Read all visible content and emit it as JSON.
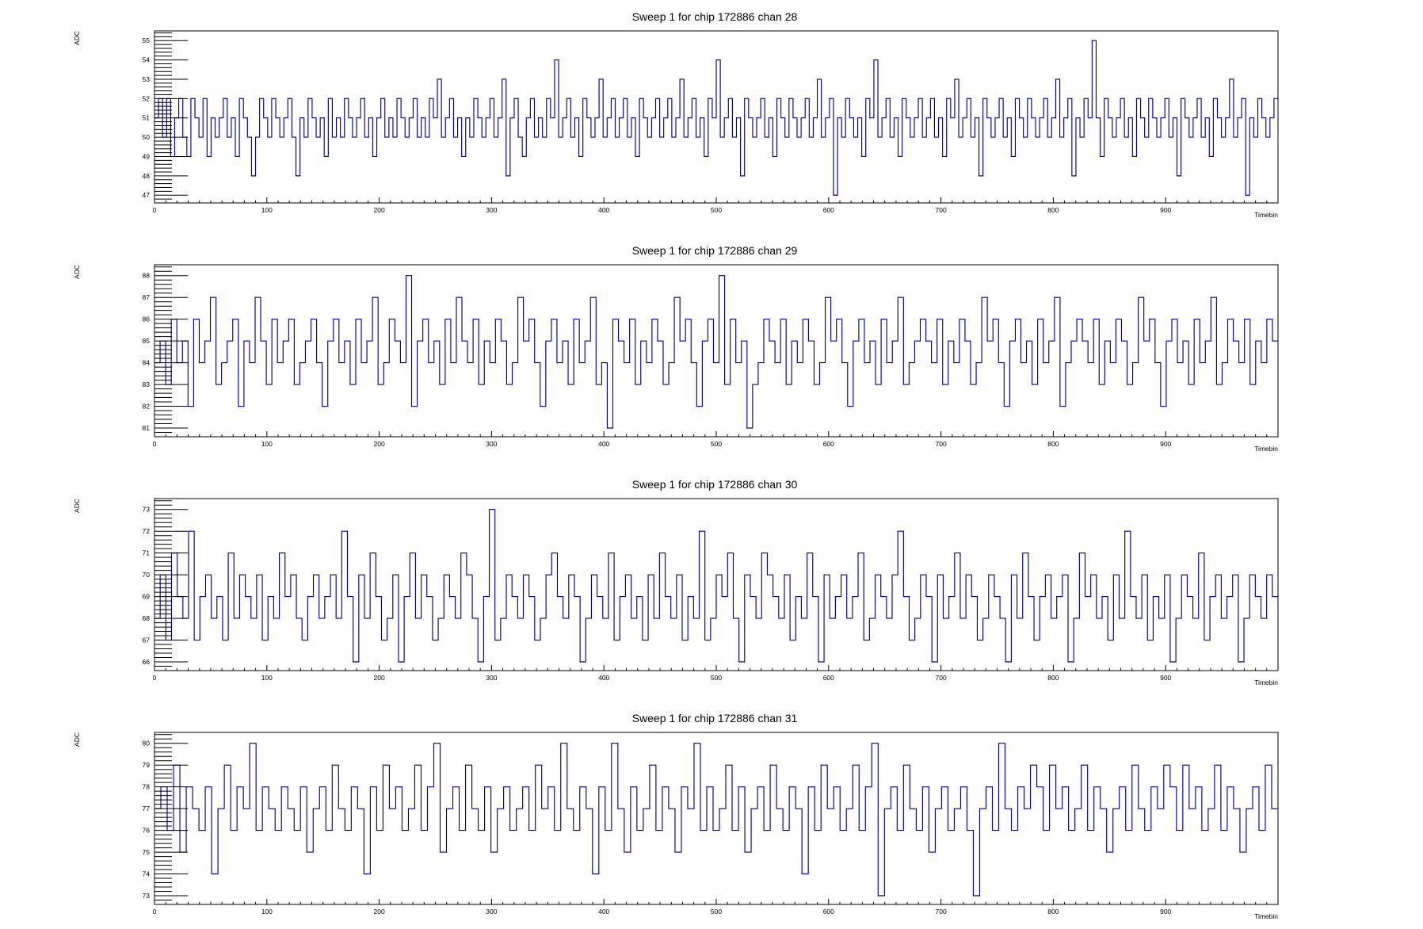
{
  "chart_data": [
    {
      "type": "line",
      "title": "Sweep 1 for chip 172886 chan 28",
      "xlabel": "Timebin",
      "ylabel": "ADC",
      "xlim": [
        0,
        1000
      ],
      "ylim": [
        46.6,
        55.5
      ],
      "xticks": [
        0,
        100,
        200,
        300,
        400,
        500,
        600,
        700,
        800,
        900
      ],
      "yticks": [
        47,
        48,
        49,
        50,
        51,
        52,
        53,
        54,
        55
      ],
      "grid": false,
      "legend": "none",
      "step": true,
      "series": [
        {
          "values": [
            51,
            52,
            50,
            52,
            49,
            51,
            52,
            50,
            49,
            52,
            51,
            50,
            52,
            49,
            51,
            50,
            51,
            52,
            50,
            51,
            49,
            52,
            51,
            50,
            48,
            50,
            52,
            51,
            50,
            52,
            51,
            50,
            51,
            52,
            50,
            48,
            51,
            50,
            52,
            51,
            50,
            51,
            49,
            52,
            50,
            51,
            50,
            52,
            51,
            50,
            51,
            52,
            50,
            51,
            49,
            51,
            52,
            50,
            51,
            50,
            52,
            51,
            50,
            51,
            52,
            50,
            51,
            50,
            52,
            51,
            53,
            50,
            51,
            52,
            50,
            51,
            49,
            51,
            50,
            52,
            51,
            50,
            51,
            52,
            50,
            51,
            53,
            48,
            51,
            52,
            50,
            49,
            51,
            52,
            50,
            51,
            50,
            52,
            51,
            54,
            50,
            51,
            52,
            50,
            51,
            49,
            52,
            51,
            50,
            51,
            53,
            50,
            51,
            52,
            50,
            51,
            52,
            50,
            51,
            49,
            52,
            51,
            50,
            51,
            52,
            50,
            51,
            52,
            50,
            51,
            53,
            50,
            51,
            52,
            50,
            51,
            49,
            52,
            51,
            54,
            50,
            51,
            52,
            50,
            51,
            48,
            52,
            51,
            50,
            51,
            52,
            50,
            51,
            49,
            52,
            51,
            50,
            52,
            51,
            50,
            51,
            52,
            50,
            51,
            53,
            50,
            51,
            52,
            47,
            51,
            50,
            52,
            51,
            50,
            51,
            49,
            52,
            51,
            54,
            50,
            51,
            52,
            50,
            51,
            49,
            52,
            51,
            50,
            51,
            52,
            50,
            51,
            52,
            50,
            51,
            49,
            52,
            51,
            53,
            50,
            51,
            52,
            50,
            51,
            48,
            52,
            51,
            50,
            51,
            52,
            50,
            51,
            49,
            52,
            51,
            50,
            52,
            51,
            50,
            51,
            52,
            50,
            51,
            53,
            50,
            51,
            52,
            48,
            51,
            50,
            52,
            51,
            55,
            51,
            49,
            52,
            51,
            50,
            51,
            52,
            50,
            51,
            49,
            52,
            51,
            50,
            52,
            51,
            50,
            51,
            52,
            50,
            51,
            48,
            52,
            51,
            50,
            51,
            52,
            50,
            51,
            49,
            52,
            51,
            50,
            51,
            53,
            50,
            51,
            52,
            47,
            51,
            50,
            52,
            51,
            50,
            51,
            52
          ]
        }
      ]
    },
    {
      "type": "line",
      "title": "Sweep 1 for chip 172886 chan 29",
      "xlabel": "Timebin",
      "ylabel": "ADC",
      "xlim": [
        0,
        1000
      ],
      "ylim": [
        80.6,
        88.5
      ],
      "xticks": [
        0,
        100,
        200,
        300,
        400,
        500,
        600,
        700,
        800,
        900
      ],
      "yticks": [
        81,
        82,
        83,
        84,
        85,
        86,
        87,
        88
      ],
      "grid": false,
      "legend": "none",
      "step": true,
      "series": [
        {
          "values": [
            84,
            85,
            83,
            86,
            84,
            85,
            82,
            86,
            84,
            85,
            87,
            83,
            84,
            85,
            86,
            82,
            85,
            84,
            87,
            85,
            83,
            86,
            84,
            85,
            86,
            83,
            84,
            85,
            86,
            84,
            82,
            85,
            86,
            84,
            85,
            83,
            86,
            84,
            85,
            87,
            83,
            84,
            86,
            85,
            84,
            88,
            82,
            85,
            86,
            84,
            85,
            83,
            86,
            84,
            87,
            85,
            84,
            86,
            83,
            85,
            84,
            86,
            85,
            83,
            84,
            87,
            85,
            86,
            84,
            82,
            85,
            86,
            84,
            85,
            83,
            86,
            84,
            85,
            87,
            83,
            84,
            81,
            86,
            85,
            84,
            86,
            83,
            85,
            84,
            86,
            85,
            83,
            84,
            87,
            85,
            86,
            84,
            82,
            85,
            86,
            84,
            88,
            83,
            86,
            84,
            85,
            81,
            83,
            84,
            86,
            85,
            84,
            86,
            83,
            85,
            84,
            86,
            85,
            83,
            84,
            87,
            85,
            86,
            84,
            82,
            85,
            86,
            84,
            85,
            83,
            86,
            84,
            85,
            87,
            83,
            84,
            85,
            86,
            85,
            84,
            86,
            83,
            85,
            84,
            86,
            85,
            83,
            84,
            87,
            85,
            86,
            84,
            82,
            85,
            86,
            84,
            85,
            83,
            86,
            84,
            85,
            87,
            82,
            84,
            85,
            86,
            85,
            84,
            86,
            83,
            85,
            84,
            86,
            85,
            83,
            84,
            87,
            85,
            86,
            84,
            82,
            85,
            86,
            84,
            85,
            83,
            86,
            84,
            85,
            87,
            83,
            84,
            86,
            85,
            84,
            86,
            83,
            85,
            84,
            86,
            85
          ]
        }
      ]
    },
    {
      "type": "line",
      "title": "Sweep 1 for chip 172886 chan 30",
      "xlabel": "Timebin",
      "ylabel": "ADC",
      "xlim": [
        0,
        1000
      ],
      "ylim": [
        65.6,
        73.5
      ],
      "xticks": [
        0,
        100,
        200,
        300,
        400,
        500,
        600,
        700,
        800,
        900
      ],
      "yticks": [
        66,
        67,
        68,
        69,
        70,
        71,
        72,
        73
      ],
      "grid": false,
      "legend": "none",
      "step": true,
      "series": [
        {
          "values": [
            68,
            70,
            67,
            71,
            69,
            68,
            72,
            67,
            69,
            70,
            68,
            69,
            67,
            71,
            68,
            70,
            69,
            68,
            70,
            67,
            69,
            68,
            71,
            69,
            70,
            68,
            67,
            69,
            70,
            68,
            69,
            70,
            68,
            72,
            69,
            66,
            70,
            68,
            71,
            69,
            67,
            68,
            70,
            66,
            69,
            71,
            68,
            70,
            69,
            67,
            68,
            70,
            69,
            68,
            71,
            70,
            68,
            66,
            69,
            73,
            67,
            68,
            70,
            69,
            68,
            70,
            69,
            67,
            68,
            70,
            71,
            69,
            68,
            70,
            69,
            66,
            68,
            70,
            69,
            68,
            71,
            67,
            69,
            70,
            68,
            69,
            67,
            70,
            68,
            71,
            69,
            68,
            70,
            67,
            69,
            68,
            72,
            67,
            68,
            70,
            69,
            71,
            68,
            66,
            70,
            69,
            68,
            71,
            70,
            69,
            68,
            70,
            67,
            69,
            68,
            71,
            69,
            66,
            70,
            68,
            69,
            70,
            68,
            69,
            71,
            67,
            68,
            70,
            69,
            68,
            70,
            72,
            69,
            67,
            68,
            70,
            69,
            66,
            70,
            68,
            69,
            71,
            68,
            70,
            69,
            67,
            68,
            70,
            69,
            68,
            66,
            70,
            68,
            71,
            69,
            67,
            69,
            70,
            68,
            69,
            70,
            66,
            68,
            71,
            69,
            70,
            68,
            69,
            67,
            70,
            68,
            72,
            69,
            68,
            70,
            67,
            69,
            68,
            70,
            66,
            68,
            70,
            69,
            68,
            71,
            67,
            69,
            70,
            68,
            69,
            70,
            66,
            68,
            70,
            69,
            68,
            70,
            69
          ]
        }
      ]
    },
    {
      "type": "line",
      "title": "Sweep 1 for chip 172886 chan 31",
      "xlabel": "Timebin",
      "ylabel": "ADC",
      "xlim": [
        0,
        1000
      ],
      "ylim": [
        72.6,
        80.5
      ],
      "xticks": [
        0,
        100,
        200,
        300,
        400,
        500,
        600,
        700,
        800,
        900
      ],
      "yticks": [
        73,
        74,
        75,
        76,
        77,
        78,
        79,
        80
      ],
      "grid": false,
      "legend": "none",
      "step": true,
      "series": [
        {
          "values": [
            77,
            78,
            76,
            79,
            75,
            78,
            77,
            76,
            78,
            74,
            77,
            79,
            76,
            78,
            77,
            80,
            76,
            78,
            77,
            76,
            78,
            77,
            76,
            78,
            75,
            77,
            78,
            76,
            79,
            77,
            76,
            78,
            77,
            74,
            78,
            76,
            79,
            77,
            78,
            76,
            77,
            79,
            76,
            78,
            80,
            75,
            77,
            78,
            76,
            79,
            77,
            76,
            78,
            75,
            77,
            78,
            76,
            77,
            78,
            76,
            79,
            77,
            78,
            76,
            80,
            77,
            76,
            78,
            77,
            74,
            78,
            76,
            80,
            77,
            75,
            78,
            76,
            77,
            79,
            76,
            78,
            77,
            75,
            78,
            77,
            80,
            76,
            78,
            76,
            77,
            79,
            76,
            78,
            75,
            77,
            78,
            76,
            79,
            77,
            76,
            78,
            77,
            74,
            78,
            76,
            79,
            77,
            78,
            76,
            77,
            79,
            76,
            78,
            80,
            73,
            77,
            78,
            76,
            79,
            77,
            76,
            78,
            75,
            77,
            78,
            76,
            77,
            78,
            76,
            73,
            77,
            78,
            76,
            80,
            77,
            76,
            78,
            77,
            79,
            78,
            76,
            79,
            77,
            78,
            76,
            77,
            79,
            76,
            78,
            77,
            75,
            77,
            78,
            76,
            79,
            77,
            76,
            78,
            77,
            79,
            78,
            76,
            79,
            77,
            78,
            76,
            77,
            79,
            76,
            78,
            77,
            75,
            77,
            78,
            76,
            79,
            77
          ]
        }
      ]
    }
  ]
}
